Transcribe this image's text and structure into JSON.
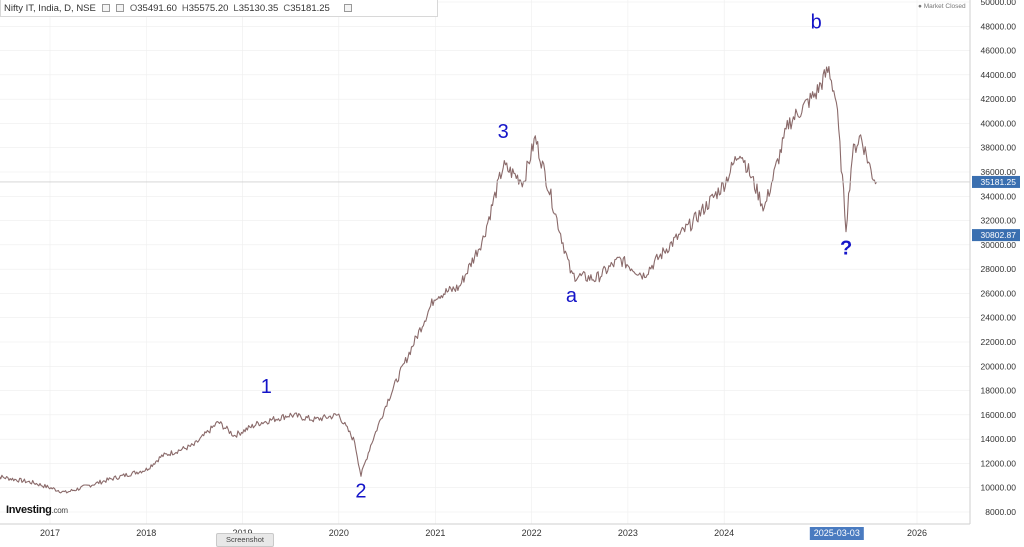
{
  "legend": {
    "symbol": "Nifty IT, India, D, NSE",
    "open_label": "O",
    "open": "35491.60",
    "high_label": "H",
    "high": "35575.20",
    "low_label": "L",
    "low": "35130.35",
    "close_label": "C",
    "close": "35181.25"
  },
  "market_status": "● Market Closed",
  "logo": {
    "name": "Investing",
    "domain": ".com"
  },
  "screenshot_tab": "Screenshot",
  "colors": {
    "candle": "#8a6a6a",
    "wave_label": "#1414c8",
    "price_badge": "#3a6fb0",
    "date_badge": "#4a7bc0",
    "grid": "#eeeeee"
  },
  "chart_data": {
    "type": "line",
    "title": "Nifty IT, India, D, NSE",
    "x": [
      "2016-06-01",
      "2016-11-01",
      "2017-03-01",
      "2017-08-01",
      "2018-01-01",
      "2018-03-01",
      "2018-07-01",
      "2018-10-01",
      "2018-12-01",
      "2019-03-01",
      "2019-07-01",
      "2019-10-01",
      "2020-01-01",
      "2020-03-01",
      "2020-03-25",
      "2020-05-01",
      "2020-07-01",
      "2020-09-01",
      "2021-01-01",
      "2021-04-01",
      "2021-07-01",
      "2021-09-15",
      "2021-12-01",
      "2022-01-15",
      "2022-03-15",
      "2022-06-01",
      "2022-09-01",
      "2022-12-01",
      "2023-03-01",
      "2023-06-01",
      "2023-09-01",
      "2024-01-01",
      "2024-03-01",
      "2024-06-01",
      "2024-09-01",
      "2024-12-15",
      "2025-02-01",
      "2025-03-01",
      "2025-04-07",
      "2025-05-01",
      "2025-06-01",
      "2025-07-15",
      "2025-08-01"
    ],
    "values": [
      11000,
      10400,
      9600,
      10600,
      11500,
      12600,
      13500,
      15400,
      14300,
      15300,
      16000,
      15600,
      16000,
      13800,
      11000,
      13500,
      17000,
      20000,
      25800,
      26500,
      30500,
      36500,
      35200,
      38800,
      34000,
      27500,
      27200,
      28800,
      27500,
      29800,
      31800,
      35000,
      37800,
      33000,
      40000,
      42500,
      44500,
      41800,
      31500,
      37500,
      39000,
      35800,
      35181
    ]
  },
  "axes": {
    "y_ticks": [
      "8000.00",
      "10000.00",
      "12000.00",
      "14000.00",
      "16000.00",
      "18000.00",
      "20000.00",
      "22000.00",
      "24000.00",
      "26000.00",
      "28000.00",
      "30000.00",
      "32000.00",
      "34000.00",
      "36000.00",
      "38000.00",
      "40000.00",
      "42000.00",
      "44000.00",
      "46000.00",
      "48000.00",
      "50000.00"
    ],
    "x_ticks": [
      "2017",
      "2018",
      "2019",
      "2020",
      "2021",
      "2022",
      "2023",
      "2024",
      "2026"
    ],
    "last_price": "35181.25",
    "marker_price": "30802.87",
    "date_badge": "2025-03-03"
  },
  "annotations": [
    "1",
    "2",
    "3",
    "a",
    "b",
    "?"
  ]
}
